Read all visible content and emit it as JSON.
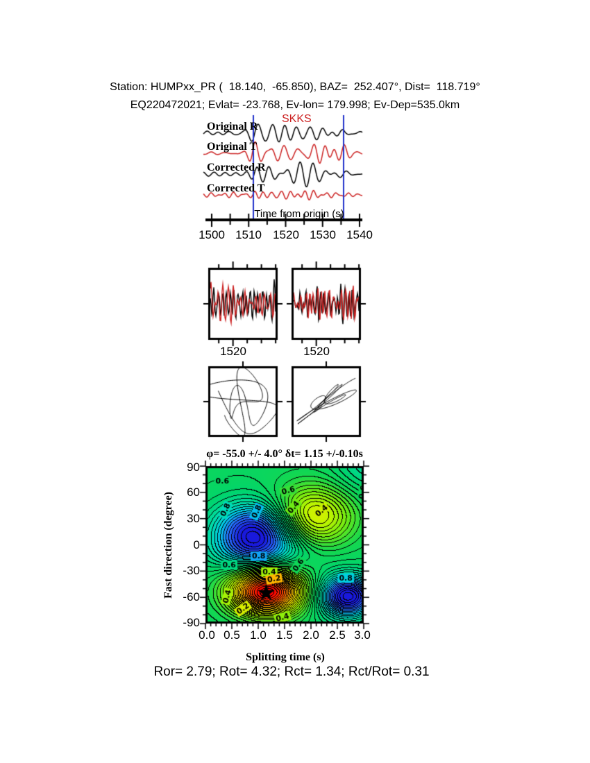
{
  "page": {
    "background": "#ffffff"
  },
  "header": {
    "line1": "Station: HUMPxx_PR (  18.140,  -65.850), BAZ=  252.407°, Dist=  118.719°",
    "line2": "EQ220472021; Evlat= -23.768, Ev-lon= 179.998; Ev-Dep=535.0km"
  },
  "chart_data": [
    {
      "type": "line",
      "name": "seismogram-traces",
      "phase_label": "SKKS",
      "phase_label_color": "#cc2222",
      "traces": [
        {
          "label": "Original R",
          "color": "#000000"
        },
        {
          "label": "Original T",
          "color": "#cc2222"
        },
        {
          "label": "Corrected R",
          "color": "#000000"
        },
        {
          "label": "Corrected T",
          "color": "#cc2222"
        }
      ],
      "xlabel": "Time from origin (s)",
      "x_ticks": [
        "1500",
        "1510",
        "1520",
        "1530",
        "1540"
      ],
      "xlim": [
        1498,
        1541
      ],
      "window_s": [
        1511.3,
        1535.7
      ],
      "window_color": "#2233cc"
    },
    {
      "type": "line",
      "name": "window-zoom-waveforms",
      "x_ticks": [
        "1520",
        "1520"
      ],
      "series": [
        {
          "name": "R",
          "color": "#000000"
        },
        {
          "name": "T",
          "color": "#cc2222"
        }
      ],
      "window_s": [
        1511.3,
        1535.7
      ],
      "tick_interval_s": 5
    },
    {
      "type": "scatter",
      "name": "particle-motion",
      "panels": [
        {
          "style": "original-elliptical"
        },
        {
          "style": "corrected-linear"
        }
      ],
      "color": "#000000"
    },
    {
      "type": "heatmap",
      "name": "splitting-error-surface",
      "title": "φ= -55.0 +/- 4.0° δt= 1.15 +/-0.10s",
      "xlabel": "Splitting time (s)",
      "ylabel": "Fast direction (degree)",
      "x_ticks": [
        "0.0",
        "0.5",
        "1.0",
        "1.5",
        "2.0",
        "2.5",
        "3.0"
      ],
      "y_ticks": [
        "90",
        "60",
        "30",
        "0",
        "-30",
        "-60",
        "-90"
      ],
      "xlim": [
        0,
        3
      ],
      "ylim": [
        -90,
        90
      ],
      "best": {
        "dt": 1.15,
        "phi": -55.0,
        "marker": "black-star"
      },
      "contour_interval": 0.025,
      "labeled_levels": [
        0.2,
        0.4,
        0.6,
        0.8
      ],
      "base_level": 0.62,
      "surface_model": [
        {
          "x": 0.93,
          "y": 14,
          "sx": 0.55,
          "sy": 24,
          "a": 0.42
        },
        {
          "x": 1.05,
          "y": -10,
          "sx": 0.7,
          "sy": 14,
          "a": 0.08
        },
        {
          "x": 2.72,
          "y": -60,
          "sx": 0.38,
          "sy": 17,
          "a": 0.45
        },
        {
          "x": 1.15,
          "y": -55,
          "sx": 0.5,
          "sy": 19,
          "a": -0.65
        },
        {
          "x": 2.05,
          "y": 34,
          "sx": 0.55,
          "sy": 25,
          "a": -0.3
        },
        {
          "x": 3.1,
          "y": 95,
          "sx": 0.45,
          "sy": 25,
          "a": 0.1
        }
      ],
      "contour_labels": [
        {
          "t": "0.6",
          "x": 0.32,
          "y": 73,
          "r": 0
        },
        {
          "t": "0.6",
          "x": 1.57,
          "y": 62,
          "r": -15
        },
        {
          "t": "0.6",
          "x": 2.98,
          "y": 60,
          "r": -80
        },
        {
          "t": "0.8",
          "x": 0.38,
          "y": 40,
          "r": -65
        },
        {
          "t": "0.8",
          "x": 0.97,
          "y": 38,
          "r": -65
        },
        {
          "t": "0.4",
          "x": 1.67,
          "y": 43,
          "r": -50
        },
        {
          "t": "0.4",
          "x": 2.2,
          "y": 39,
          "r": -40
        },
        {
          "t": "0.8",
          "x": 1.01,
          "y": -13,
          "r": 0
        },
        {
          "t": "0.6",
          "x": 0.45,
          "y": -23,
          "r": 0
        },
        {
          "t": "0.6",
          "x": 1.76,
          "y": -23,
          "r": -55
        },
        {
          "t": "0.4",
          "x": 1.21,
          "y": -31,
          "r": 0
        },
        {
          "t": "0.2",
          "x": 1.3,
          "y": -39,
          "r": -10
        },
        {
          "t": "0.8",
          "x": 2.66,
          "y": -38,
          "r": 0
        },
        {
          "t": "0.4",
          "x": 0.41,
          "y": -59,
          "r": -75
        },
        {
          "t": "0.2",
          "x": 0.71,
          "y": -73,
          "r": -35
        },
        {
          "t": "0.4",
          "x": 1.46,
          "y": -83,
          "r": -15
        }
      ],
      "colormap": [
        [
          0.0,
          255,
          0,
          0
        ],
        [
          0.08,
          255,
          60,
          0
        ],
        [
          0.18,
          255,
          150,
          0
        ],
        [
          0.28,
          255,
          230,
          0
        ],
        [
          0.38,
          190,
          245,
          0
        ],
        [
          0.48,
          110,
          235,
          20
        ],
        [
          0.58,
          20,
          215,
          80
        ],
        [
          0.66,
          0,
          212,
          110
        ],
        [
          0.74,
          0,
          222,
          170
        ],
        [
          0.82,
          0,
          205,
          235
        ],
        [
          0.9,
          40,
          110,
          255
        ],
        [
          1.0,
          25,
          25,
          220
        ]
      ]
    }
  ],
  "footer": {
    "stats": "Ror= 2.79; Rot= 4.32; Rct= 1.34; Rct/Rot= 0.31"
  }
}
